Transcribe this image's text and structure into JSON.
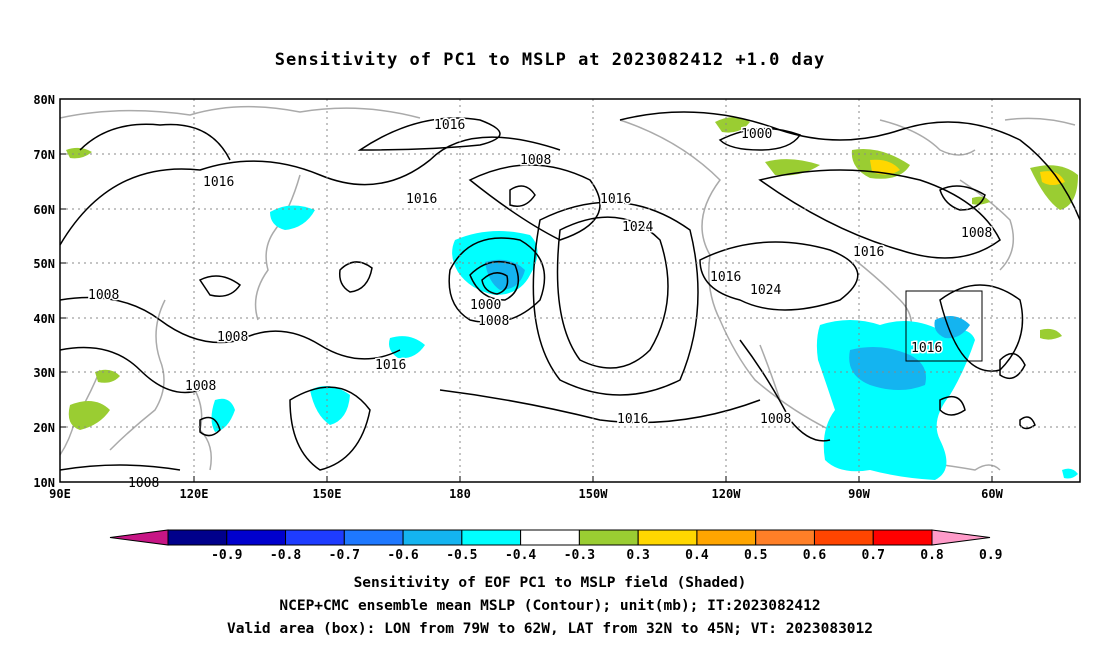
{
  "title": "Sensitivity of PC1 to MSLP at 2023082412 +1.0 day",
  "lat_labels": [
    "80N",
    "70N",
    "60N",
    "50N",
    "40N",
    "30N",
    "20N",
    "10N"
  ],
  "lon_labels": [
    "90E",
    "120E",
    "150E",
    "180",
    "150W",
    "120W",
    "90W",
    "60W"
  ],
  "contour_labels": [
    {
      "text": "1016"
    },
    {
      "text": "1016"
    },
    {
      "text": "1016"
    },
    {
      "text": "1008"
    },
    {
      "text": "1016"
    },
    {
      "text": "1024"
    },
    {
      "text": "1000"
    },
    {
      "text": "1008"
    },
    {
      "text": "1016"
    },
    {
      "text": "1024"
    },
    {
      "text": "1000"
    },
    {
      "text": "1008"
    },
    {
      "text": "1016"
    },
    {
      "text": "1008"
    },
    {
      "text": "1016"
    },
    {
      "text": "1008"
    },
    {
      "text": "1008"
    },
    {
      "text": "1016"
    },
    {
      "text": "1016"
    },
    {
      "text": "1008"
    },
    {
      "text": "1008"
    }
  ],
  "colorbar": {
    "labels": [
      "-0.9",
      "-0.8",
      "-0.7",
      "-0.6",
      "-0.5",
      "-0.4",
      "-0.3",
      "0.3",
      "0.4",
      "0.5",
      "0.6",
      "0.7",
      "0.8",
      "0.9"
    ],
    "colors": [
      "#c71585",
      "#00008b",
      "#0000cd",
      "#1e3cff",
      "#1e78ff",
      "#14b4f0",
      "#00ffff",
      "#ffffff",
      "#9acd32",
      "#ffd700",
      "#ffa500",
      "#ff7f27",
      "#ff4500",
      "#ff0000",
      "#ff9bc9"
    ]
  },
  "box": {
    "lon_from": "79W",
    "lon_to": "62W",
    "lat_from": "32N",
    "lat_to": "45N"
  },
  "captions": [
    "Sensitivity of EOF PC1 to MSLP field (Shaded)",
    "NCEP+CMC ensemble mean MSLP (Contour); unit(mb); IT:2023082412",
    "Valid area (box): LON from 79W to 62W, LAT from 32N to 45N; VT: 2023083012"
  ]
}
